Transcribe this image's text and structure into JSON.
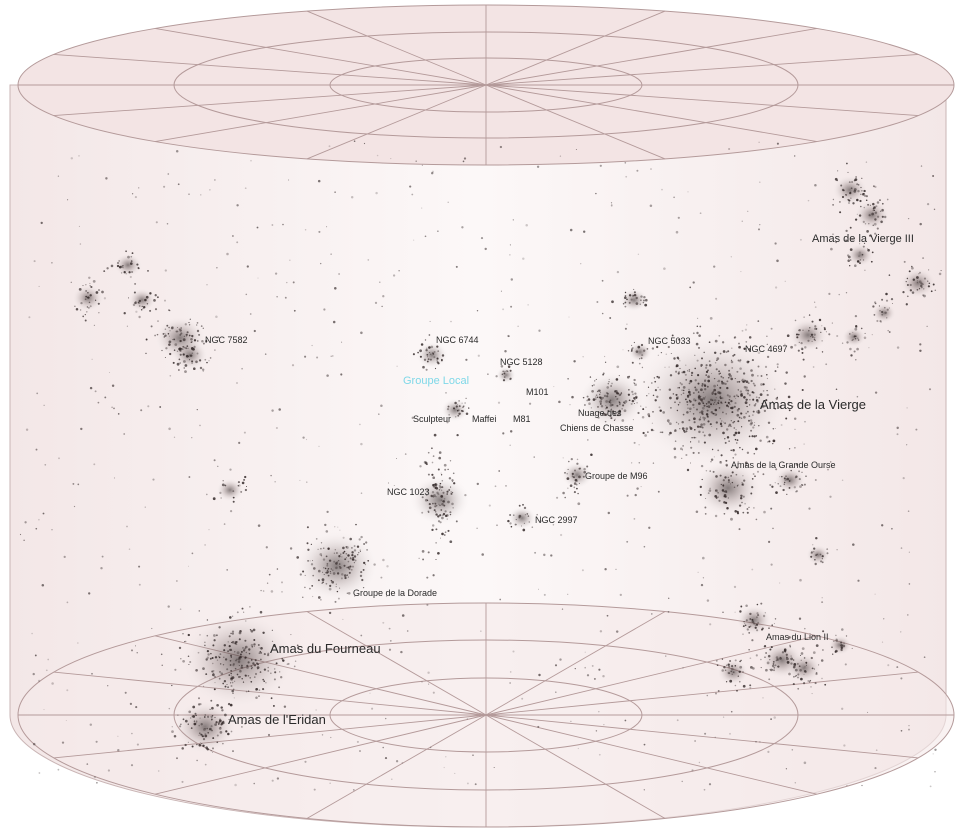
{
  "labels": {
    "virgo_iii": "Amas de la Vierge III",
    "ngc7582": "NGC 7582",
    "ngc6744": "NGC 6744",
    "ngc5128": "NGC 5128",
    "local_group": "Groupe Local",
    "m101": "M101",
    "m81": "M81",
    "sculpteur": "Sculpteur",
    "maffei": "Maffei",
    "ngc5033": "NGC 5033",
    "ngc4697": "NGC 4697",
    "canes_line1": "Nuage des",
    "canes_line2": "Chiens de Chasse",
    "virgo": "Amas de la Vierge",
    "ursa_major": "Amas de la Grande Ourse",
    "m96": "Groupe de M96",
    "ngc1023": "NGC 1023",
    "ngc2997": "NGC 2997",
    "dorado": "Groupe de la Dorade",
    "fornax": "Amas du Fourneau",
    "eridanus": "Amas de l'Eridan",
    "leo_ii": "Amas du Lion II"
  },
  "colors": {
    "background": "#ffffff",
    "cylinder_fill": "#f6ecec",
    "cylinder_line": "#b49a9a",
    "galaxy_dot": "#3a3030",
    "label_text": "#2a2a2a",
    "local_group_highlight": "#7fd8e8"
  }
}
